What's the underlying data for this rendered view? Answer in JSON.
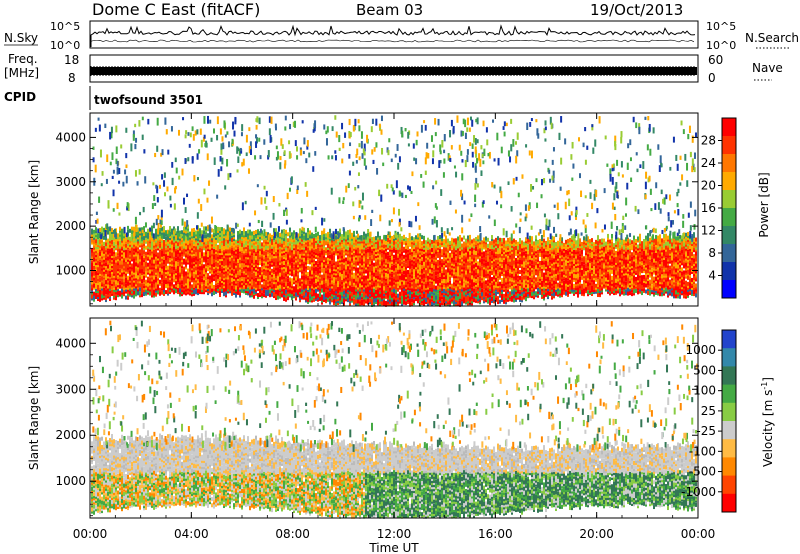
{
  "header": {
    "station": "Dome C East (fitACF)",
    "beam": "Beam 03",
    "date": "19/Oct/2013"
  },
  "strips": {
    "nsky_label": "N.Sky",
    "nsky_ticks": [
      "10^5",
      "10^0"
    ],
    "nsearch_label": "N.Search",
    "nsearch_ticks": [
      "10^5",
      "10^0"
    ],
    "freq_label_1": "Freq.",
    "freq_label_2": "[MHz]",
    "freq_ticks": [
      "18",
      "8"
    ],
    "nave_label": "Nave",
    "nave_ticks": [
      "60",
      "0"
    ],
    "cpid_label": "CPID",
    "cpid_value": "twofsound 3501"
  },
  "chart_data": [
    {
      "type": "heatmap",
      "name": "power",
      "ylabel": "Slant Range [km]",
      "yticks": [
        "1000",
        "2000",
        "3000",
        "4000"
      ],
      "ylim": [
        200,
        4550
      ],
      "xlabel": "Time UT",
      "xticks": [
        "00:00",
        "04:00",
        "08:00",
        "12:00",
        "16:00",
        "20:00",
        "00:00"
      ],
      "colorbar_label": "Power [dB]",
      "colorbar_ticks": [
        "28",
        "24",
        "20",
        "16",
        "12",
        "8",
        "4"
      ],
      "colorbar_colors": [
        "#ff0000",
        "#ff3300",
        "#ff7700",
        "#ffaa00",
        "#99cc33",
        "#44aa44",
        "#338866",
        "#336699",
        "#1133aa",
        "#0000ff"
      ]
    },
    {
      "type": "heatmap",
      "name": "velocity",
      "ylabel": "Slant Range [km]",
      "yticks": [
        "1000",
        "2000",
        "3000",
        "4000"
      ],
      "ylim": [
        200,
        4550
      ],
      "xlabel": "Time UT",
      "xticks": [
        "00:00",
        "04:00",
        "08:00",
        "12:00",
        "16:00",
        "20:00",
        "00:00"
      ],
      "colorbar_label": "Velocity [m s",
      "colorbar_label_sup": "-1",
      "colorbar_ticks": [
        "1000",
        "500",
        "100",
        "25",
        "-25",
        "-100",
        "-500",
        "-1000"
      ],
      "colorbar_colors": [
        "#2244cc",
        "#3388aa",
        "#337755",
        "#44aa44",
        "#88cc44",
        "#cccccc",
        "#ffbb44",
        "#ff8800",
        "#ff4400",
        "#ff0000"
      ]
    }
  ]
}
